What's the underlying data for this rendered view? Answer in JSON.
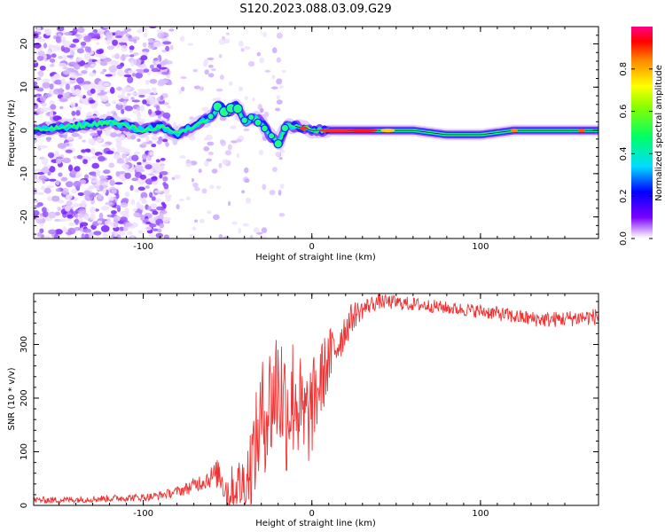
{
  "title": "S120.2023.088.03.09.G29",
  "chart_data": [
    {
      "type": "heatmap",
      "xlabel": "Height of straight line (km)",
      "ylabel": "Frequency (Hz)",
      "xlim": [
        -165,
        170
      ],
      "ylim": [
        -25,
        24
      ],
      "xticks": [
        -100,
        0,
        100
      ],
      "yticks": [
        -20,
        -10,
        0,
        10,
        20
      ],
      "colorbar": {
        "label": "Normalized spectral amplitude",
        "range": [
          0,
          1
        ],
        "ticks": [
          "0.0",
          "0.2",
          "0.4",
          "0.6",
          "0.8"
        ]
      },
      "ridge": {
        "x": [
          -165,
          -140,
          -120,
          -100,
          -90,
          -80,
          -70,
          -60,
          -55,
          -50,
          -45,
          -40,
          -35,
          -30,
          -25,
          -20,
          -15,
          -10,
          0,
          10,
          20,
          40,
          60,
          80,
          100,
          120,
          140,
          170
        ],
        "y": [
          0,
          1,
          2,
          0,
          1,
          -1,
          1,
          3,
          6,
          4,
          6,
          2,
          3,
          2,
          -1,
          -3,
          1,
          1,
          0,
          0,
          0,
          0,
          0,
          -1,
          -1,
          0,
          0,
          0
        ]
      },
      "noise_region_x": [
        -165,
        -85
      ]
    },
    {
      "type": "line",
      "xlabel": "Height of straight line (km)",
      "ylabel": "SNR (10 * v/v)",
      "xlim": [
        -165,
        170
      ],
      "ylim": [
        0,
        395
      ],
      "xticks": [
        -100,
        0,
        100
      ],
      "yticks": [
        0,
        100,
        200,
        300
      ],
      "color": "#f03232",
      "series": [
        {
          "x": [
            -165,
            -150,
            -130,
            -110,
            -95,
            -85,
            -75,
            -65,
            -55,
            -50,
            -45,
            -40,
            -35,
            -30,
            -25,
            -20,
            -15,
            -10,
            -5,
            0,
            5,
            10,
            15,
            20,
            25,
            30,
            35,
            40,
            50,
            60,
            70,
            80,
            90,
            100,
            110,
            120,
            130,
            140,
            150,
            160,
            170
          ],
          "y": [
            10,
            10,
            12,
            14,
            16,
            22,
            30,
            45,
            60,
            25,
            35,
            40,
            90,
            160,
            190,
            230,
            180,
            210,
            150,
            180,
            230,
            270,
            300,
            330,
            355,
            365,
            375,
            380,
            378,
            375,
            372,
            368,
            365,
            362,
            358,
            352,
            348,
            346,
            348,
            350,
            352
          ]
        }
      ],
      "spread": {
        "x": [
          -165,
          -100,
          -80,
          -60,
          -40,
          -30,
          -20,
          -10,
          0,
          10,
          20,
          30,
          40,
          80,
          120,
          170
        ],
        "y": [
          6,
          7,
          9,
          20,
          60,
          110,
          130,
          120,
          90,
          60,
          35,
          18,
          14,
          12,
          14,
          16
        ]
      }
    }
  ]
}
